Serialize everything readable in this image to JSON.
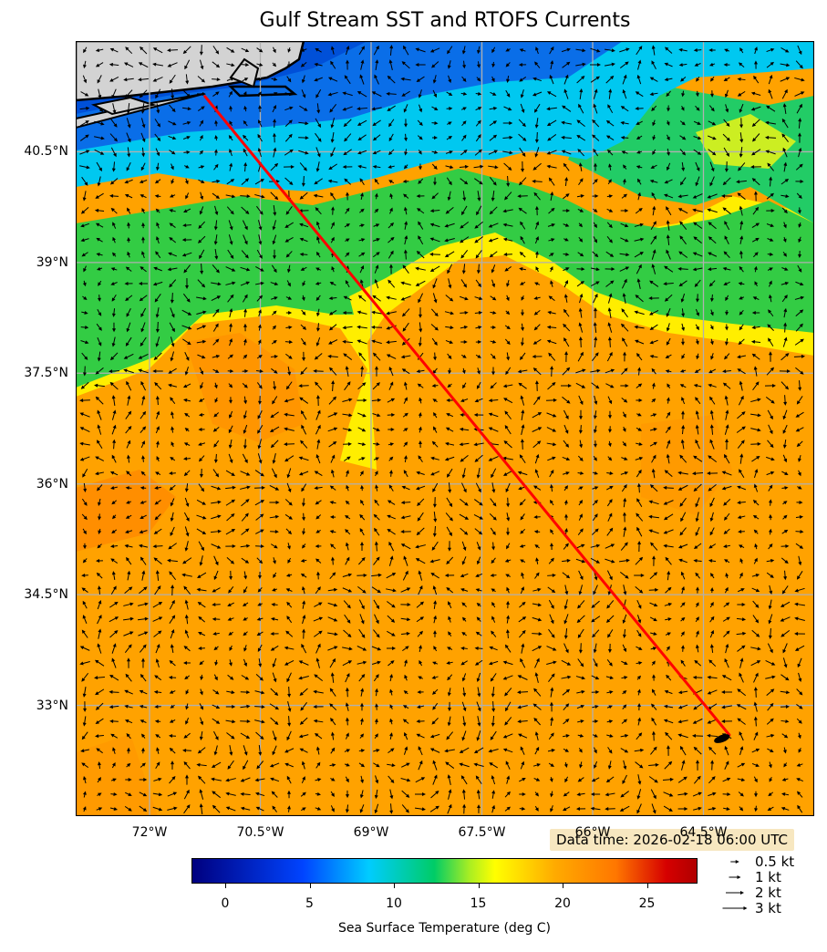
{
  "title": "Gulf Stream SST and RTOFS Currents",
  "map": {
    "lon_range": [
      -73,
      -63
    ],
    "lat_range": [
      31.5,
      42.0
    ],
    "lon_ticks": [
      {
        "value": -72,
        "label": "72°W"
      },
      {
        "value": -70.5,
        "label": "70.5°W"
      },
      {
        "value": -69,
        "label": "69°W"
      },
      {
        "value": -67.5,
        "label": "67.5°W"
      },
      {
        "value": -66,
        "label": "66°W"
      },
      {
        "value": -64.5,
        "label": "64.5°W"
      }
    ],
    "lat_ticks": [
      {
        "value": 40.5,
        "label": "40.5°N"
      },
      {
        "value": 39,
        "label": "39°N"
      },
      {
        "value": 37.5,
        "label": "37.5°N"
      },
      {
        "value": 36,
        "label": "36°N"
      },
      {
        "value": 34.5,
        "label": "34.5°N"
      },
      {
        "value": 33,
        "label": "33°N"
      }
    ],
    "route": {
      "color": "#ff0000",
      "points": [
        [
          -71.25,
          41.25
        ],
        [
          -64.15,
          32.6
        ]
      ]
    },
    "endpoint_marker": {
      "lon": -64.25,
      "lat": 32.55,
      "color": "#000000"
    },
    "gridlines": true,
    "land_color": "#d3d3d3",
    "data_time": "Data time: 2026-02-18 06:00 UTC"
  },
  "colorbar": {
    "label": "Sea Surface Temperature (deg C)",
    "range": [
      -2,
      28
    ],
    "ticks": [
      {
        "value": 0,
        "label": "0"
      },
      {
        "value": 5,
        "label": "5"
      },
      {
        "value": 10,
        "label": "10"
      },
      {
        "value": 15,
        "label": "15"
      },
      {
        "value": 20,
        "label": "20"
      },
      {
        "value": 25,
        "label": "25"
      }
    ],
    "colors": [
      "#00007f",
      "#0044ff",
      "#00ccff",
      "#00cc66",
      "#ffff00",
      "#ffaa00",
      "#d60000"
    ]
  },
  "vector_legend": [
    {
      "speed": 0.5,
      "label": "0.5 kt"
    },
    {
      "speed": 1,
      "label": "1 kt"
    },
    {
      "speed": 2,
      "label": "2 kt"
    },
    {
      "speed": 3,
      "label": "3 kt"
    }
  ]
}
